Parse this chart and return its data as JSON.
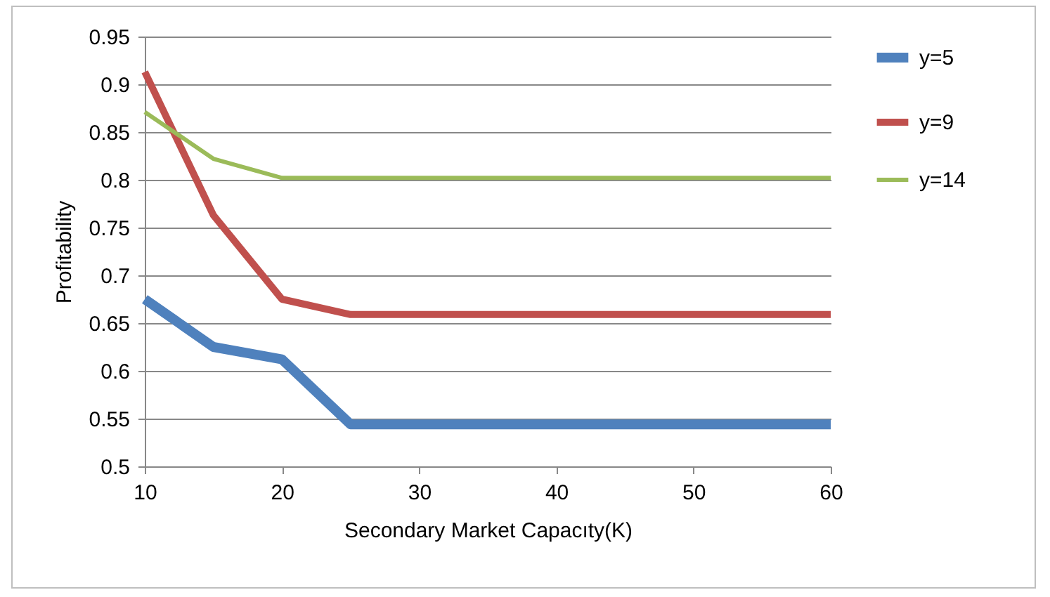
{
  "chart_data": {
    "type": "line",
    "xlabel": "Secondary Market Capacıty(K)",
    "ylabel": "Profitability",
    "x": [
      10,
      15,
      20,
      25,
      30,
      40,
      50,
      60
    ],
    "series": [
      {
        "name": "y=5",
        "color": "#4f81bd",
        "values": [
          0.675,
          0.625,
          0.612,
          0.544,
          0.544,
          0.544,
          0.544,
          0.544
        ]
      },
      {
        "name": "y=9",
        "color": "#c0504d",
        "values": [
          0.913,
          0.763,
          0.675,
          0.659,
          0.659,
          0.659,
          0.659,
          0.659
        ]
      },
      {
        "name": "y=14",
        "color": "#9bbb59",
        "values": [
          0.871,
          0.822,
          0.802,
          0.802,
          0.802,
          0.802,
          0.802,
          0.802
        ]
      }
    ],
    "xlim": [
      10,
      60
    ],
    "xticks": [
      10,
      20,
      30,
      40,
      50,
      60
    ],
    "ylim": [
      0.5,
      0.95
    ],
    "yticks": [
      0.5,
      0.55,
      0.6,
      0.65,
      0.7,
      0.75,
      0.8,
      0.85,
      0.9,
      0.95
    ],
    "grid": "y",
    "legend": "right"
  }
}
